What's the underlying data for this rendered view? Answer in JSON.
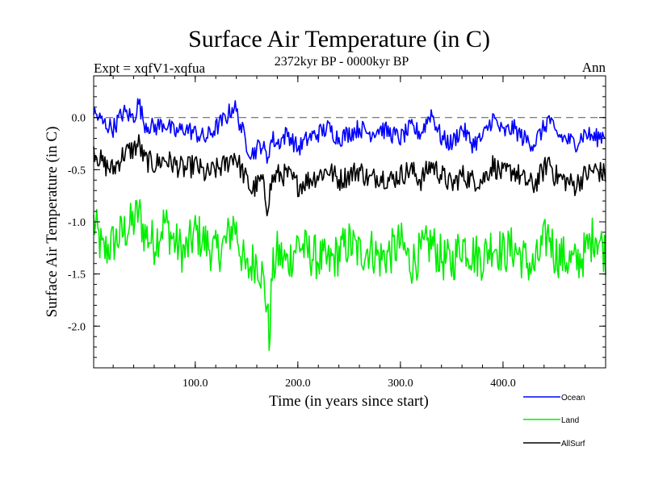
{
  "chart_data": {
    "type": "line",
    "title": "Surface Air Temperature (in C)",
    "subtitle": "2372kyr BP - 0000kyr BP",
    "left_label": "Expt = xqfV1-xqfua",
    "right_label": "Ann",
    "xlabel": "Time (in years since start)",
    "ylabel": "Surface Air Temperature (in C)",
    "xlim": [
      1,
      500
    ],
    "ylim": [
      -2.4,
      0.4
    ],
    "x_ticks": [
      100,
      200,
      300,
      400
    ],
    "x_tick_labels": [
      "100.0",
      "200.0",
      "300.0",
      "400.0"
    ],
    "y_ticks": [
      0.0,
      -0.5,
      -1.0,
      -1.5,
      -2.0
    ],
    "y_tick_labels": [
      "0.0",
      "-0.5",
      "-1.0",
      "-1.5",
      "-2.0"
    ],
    "reference_line": 0.0,
    "x": [
      1,
      10,
      20,
      30,
      40,
      45,
      50,
      60,
      70,
      80,
      90,
      100,
      110,
      120,
      130,
      138,
      145,
      150,
      155,
      160,
      165,
      170,
      172,
      175,
      180,
      190,
      200,
      210,
      220,
      230,
      240,
      250,
      260,
      270,
      280,
      290,
      300,
      310,
      320,
      330,
      340,
      350,
      360,
      370,
      380,
      390,
      400,
      410,
      420,
      430,
      440,
      445,
      450,
      460,
      470,
      480,
      490,
      500
    ],
    "series": [
      {
        "name": "Ocean",
        "color": "#0000ff",
        "values": [
          0.05,
          -0.05,
          -0.1,
          0.05,
          0.0,
          0.15,
          -0.05,
          -0.1,
          -0.05,
          -0.15,
          -0.1,
          -0.15,
          -0.2,
          -0.1,
          0.0,
          0.12,
          -0.1,
          -0.25,
          -0.35,
          -0.3,
          -0.25,
          -0.4,
          -0.3,
          -0.2,
          -0.25,
          -0.15,
          -0.3,
          -0.2,
          -0.15,
          -0.1,
          -0.2,
          -0.15,
          -0.1,
          -0.15,
          -0.1,
          -0.15,
          -0.2,
          -0.1,
          -0.15,
          0.05,
          -0.2,
          -0.25,
          -0.1,
          -0.25,
          -0.2,
          0.0,
          -0.15,
          -0.1,
          -0.2,
          -0.25,
          -0.1,
          0.0,
          -0.15,
          -0.2,
          -0.25,
          -0.15,
          -0.2,
          -0.15
        ]
      },
      {
        "name": "Land",
        "color": "#00ee00",
        "values": [
          -1.0,
          -1.3,
          -1.2,
          -1.1,
          -1.0,
          -0.9,
          -1.1,
          -1.2,
          -1.0,
          -1.2,
          -1.3,
          -1.1,
          -1.2,
          -1.3,
          -1.2,
          -1.0,
          -1.3,
          -1.5,
          -1.4,
          -1.35,
          -1.5,
          -1.8,
          -2.15,
          -1.5,
          -1.3,
          -1.4,
          -1.2,
          -1.3,
          -1.35,
          -1.4,
          -1.3,
          -1.2,
          -1.3,
          -1.25,
          -1.35,
          -1.3,
          -1.2,
          -1.4,
          -1.3,
          -1.2,
          -1.35,
          -1.4,
          -1.2,
          -1.3,
          -1.35,
          -1.2,
          -1.3,
          -1.25,
          -1.35,
          -1.45,
          -1.2,
          -1.1,
          -1.3,
          -1.35,
          -1.4,
          -1.3,
          -1.1,
          -1.3
        ]
      },
      {
        "name": "AllSurf",
        "color": "#000000",
        "values": [
          -0.3,
          -0.45,
          -0.5,
          -0.35,
          -0.3,
          -0.25,
          -0.4,
          -0.45,
          -0.4,
          -0.45,
          -0.5,
          -0.45,
          -0.55,
          -0.5,
          -0.45,
          -0.35,
          -0.5,
          -0.6,
          -0.7,
          -0.65,
          -0.6,
          -0.85,
          -0.75,
          -0.6,
          -0.55,
          -0.55,
          -0.65,
          -0.6,
          -0.55,
          -0.5,
          -0.6,
          -0.55,
          -0.5,
          -0.6,
          -0.55,
          -0.6,
          -0.55,
          -0.5,
          -0.6,
          -0.45,
          -0.55,
          -0.65,
          -0.55,
          -0.6,
          -0.6,
          -0.45,
          -0.55,
          -0.5,
          -0.6,
          -0.65,
          -0.5,
          -0.4,
          -0.55,
          -0.6,
          -0.65,
          -0.55,
          -0.5,
          -0.55
        ]
      }
    ],
    "legend": {
      "position": "bottom-right",
      "entries": [
        "Ocean",
        "Land",
        "AllSurf"
      ]
    }
  }
}
